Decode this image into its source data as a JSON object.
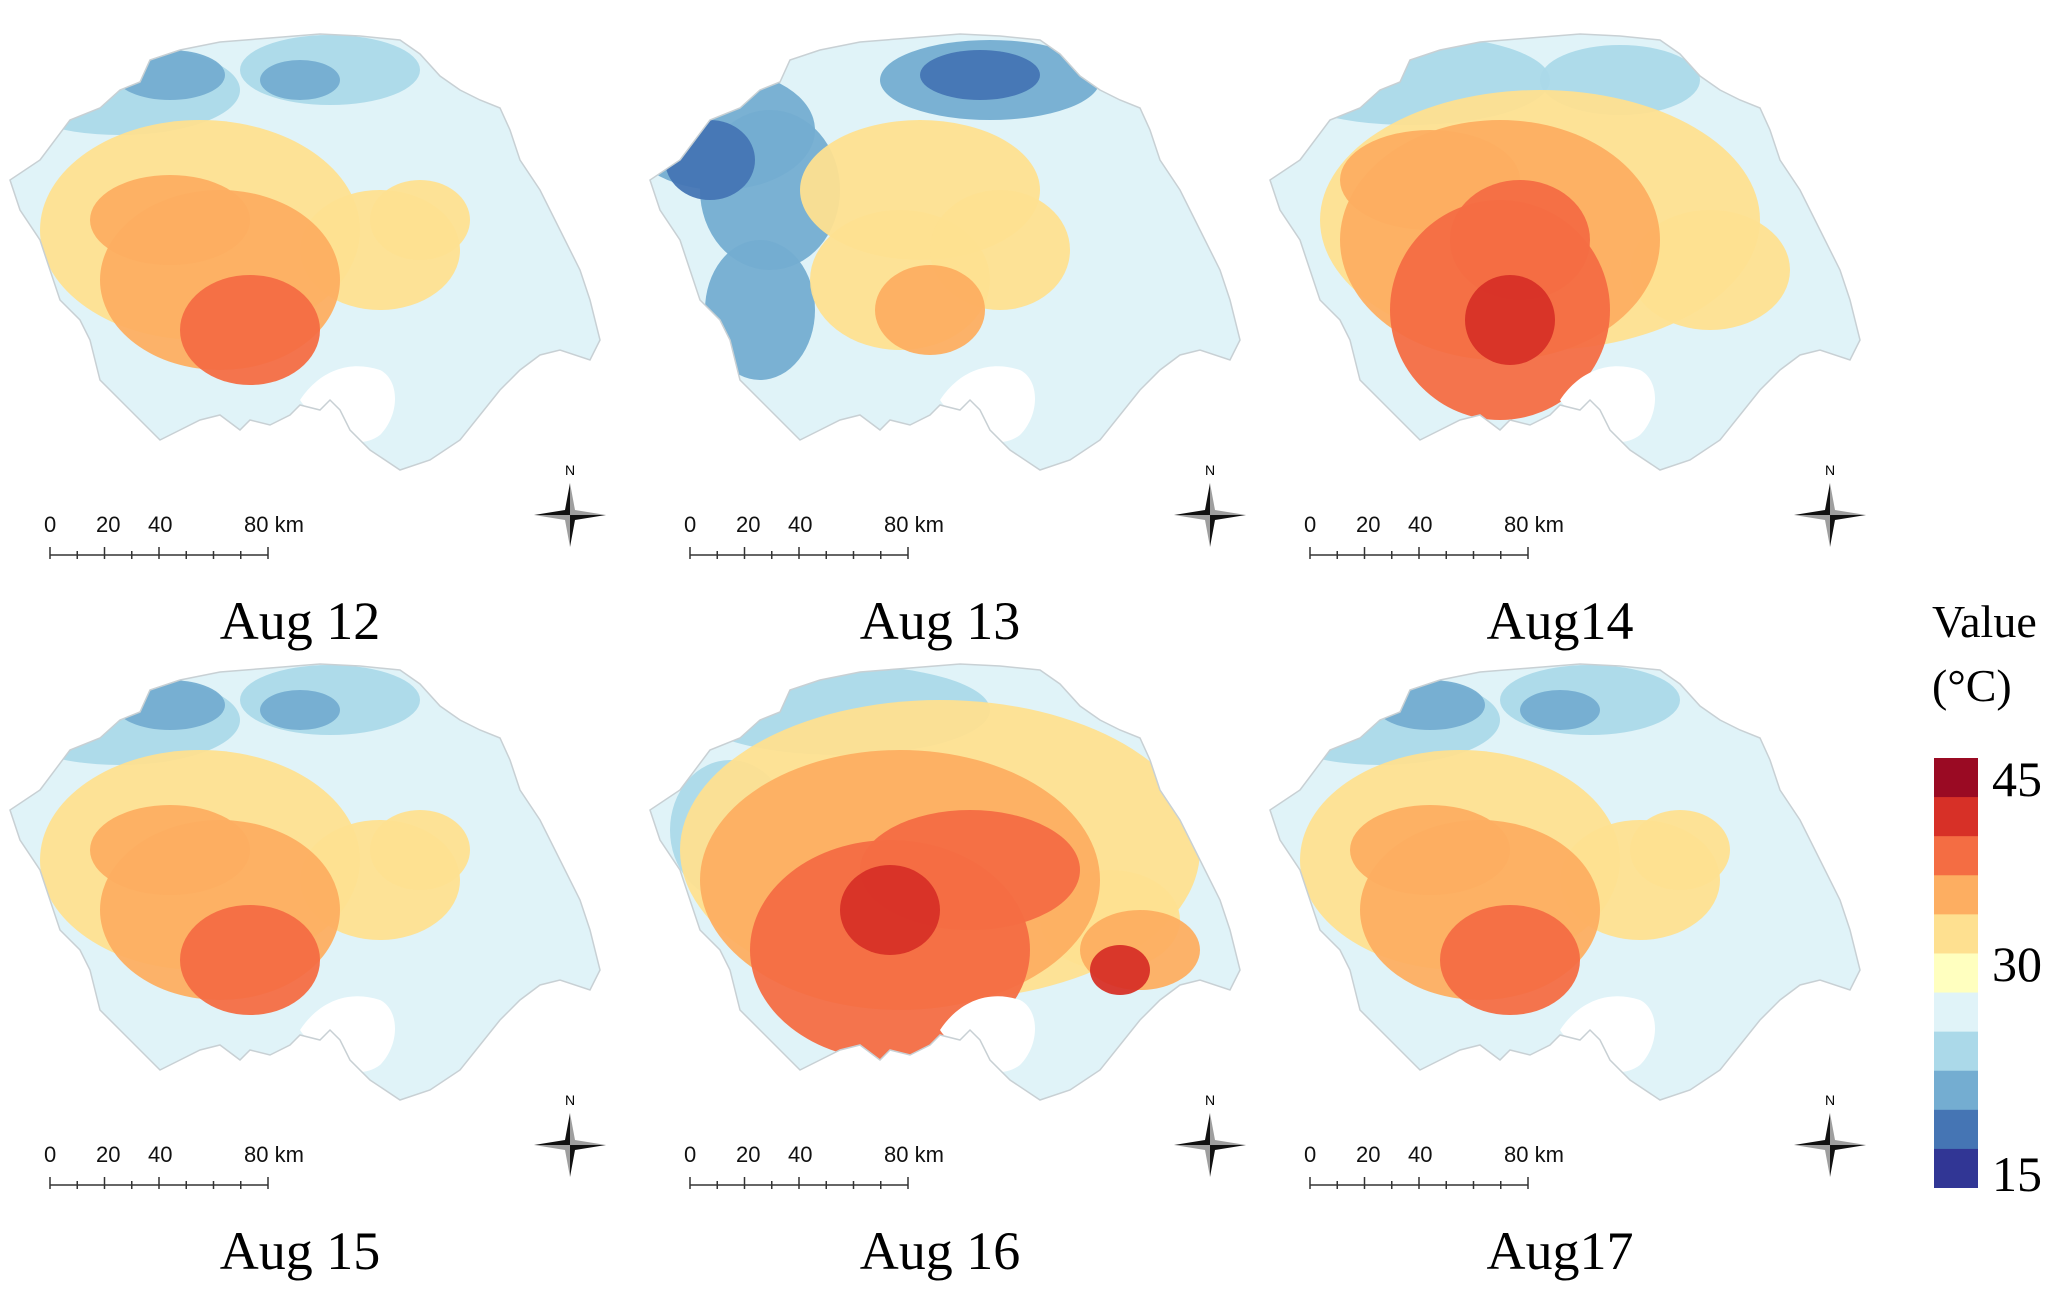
{
  "panels": [
    {
      "caption": "Aug 12",
      "pattern": "moderate"
    },
    {
      "caption": "Aug 13",
      "pattern": "cool"
    },
    {
      "caption": "Aug14",
      "pattern": "hot"
    },
    {
      "caption": "Aug 15",
      "pattern": "moderate"
    },
    {
      "caption": "Aug 16",
      "pattern": "hottest"
    },
    {
      "caption": "Aug17",
      "pattern": "moderate"
    }
  ],
  "scale_bar": {
    "labels": [
      "0",
      "20",
      "40",
      "80 km"
    ]
  },
  "north_label": "N",
  "legend": {
    "title_line1": "Value",
    "title_line2": "(°C)",
    "ticks": {
      "top": "45",
      "middle": "30",
      "bottom": "15"
    },
    "colors": [
      "#9a0a23",
      "#d73027",
      "#f46d43",
      "#fdae61",
      "#fee090",
      "#ffffbf",
      "#e0f3f8",
      "#abd9e9",
      "#74add1",
      "#4575b4",
      "#313695"
    ]
  }
}
